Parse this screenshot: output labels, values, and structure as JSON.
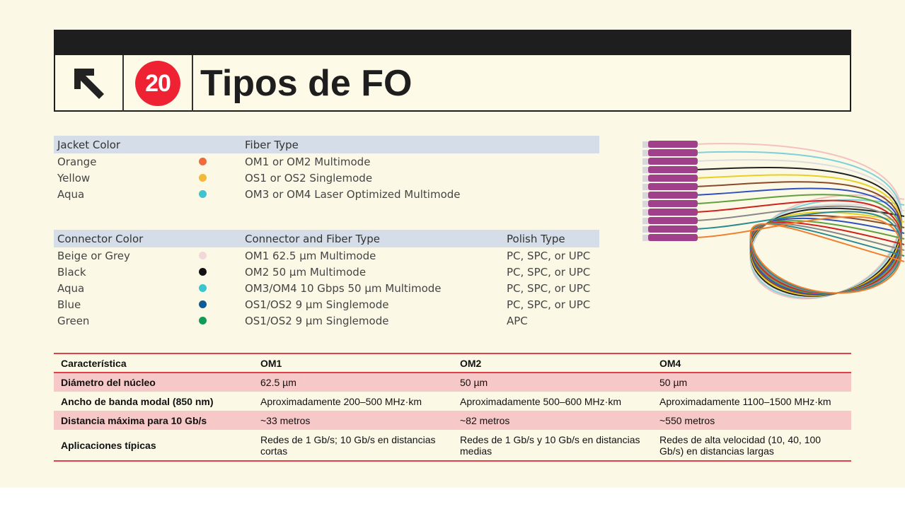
{
  "header": {
    "icon": "arrow-up-left-icon",
    "number": "20",
    "title": "Tipos de FO"
  },
  "jacket": {
    "headers": [
      "Jacket Color",
      "Fiber Type"
    ],
    "rows": [
      {
        "color": "Orange",
        "hex": "#f26a3c",
        "type": "OM1 or OM2 Multimode"
      },
      {
        "color": "Yellow",
        "hex": "#f2b83a",
        "type": "OS1 or OS2 Singlemode"
      },
      {
        "color": "Aqua",
        "hex": "#3cc4d0",
        "type": "OM3 or OM4 Laser Optimized Multimode"
      }
    ]
  },
  "connector": {
    "headers": [
      "Connector Color",
      "Connector and Fiber Type",
      "Polish Type"
    ],
    "rows": [
      {
        "color": "Beige or Grey",
        "hex": "#f0d8d8",
        "type": "OM1 62.5 µm Multimode",
        "polish": "PC, SPC, or UPC"
      },
      {
        "color": "Black",
        "hex": "#111111",
        "type": "OM2 50 µm Multimode",
        "polish": "PC, SPC, or UPC"
      },
      {
        "color": "Aqua",
        "hex": "#3cc4d0",
        "type": "OM3/OM4 10 Gbps 50 µm Multimode",
        "polish": "PC, SPC, or UPC"
      },
      {
        "color": "Blue",
        "hex": "#0e5a96",
        "type": "OS1/OS2 9 µm Singlemode",
        "polish": "PC, SPC, or UPC"
      },
      {
        "color": "Green",
        "hex": "#129a5a",
        "type": "OS1/OS2 9 µm Singlemode",
        "polish": "APC"
      }
    ]
  },
  "comparison": {
    "headers": [
      "Característica",
      "OM1",
      "OM2",
      "OM4"
    ],
    "rows": [
      [
        "Diámetro del núcleo",
        "62.5 µm",
        "50 µm",
        "50 µm"
      ],
      [
        "Ancho de banda modal (850 nm)",
        "Aproximadamente 200–500 MHz·km",
        "Aproximadamente 500–600 MHz·km",
        "Aproximadamente 1100–1500 MHz·km"
      ],
      [
        "Distancia máxima para 10 Gb/s",
        "~33 metros",
        "~82 metros",
        "~550 metros"
      ],
      [
        "Aplicaciones típicas",
        "Redes de 1 Gb/s; 10 Gb/s en distancias cortas",
        "Redes de 1 Gb/s y 10 Gb/s en distancias medias",
        "Redes de alta velocidad (10, 40, 100 Gb/s) en distancias largas"
      ]
    ]
  },
  "accent": "#ee2233"
}
